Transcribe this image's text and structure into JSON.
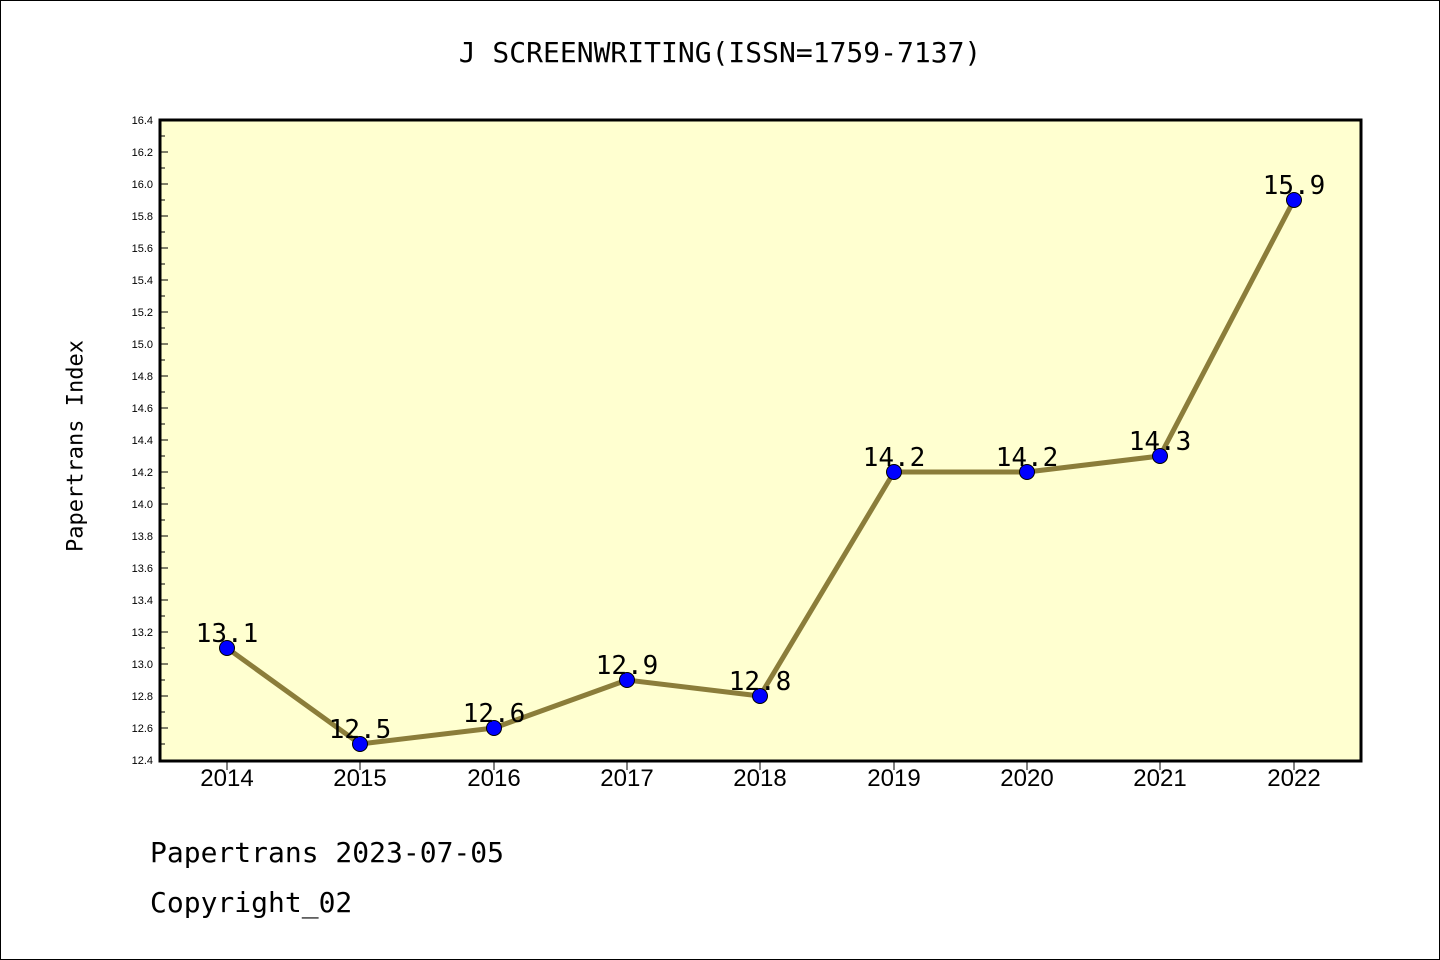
{
  "chart_data": {
    "type": "line",
    "title": "J SCREENWRITING(ISSN=1759-7137)",
    "xlabel": "",
    "ylabel": "Papertrans Index",
    "x": [
      "2014",
      "2015",
      "2016",
      "2017",
      "2018",
      "2019",
      "2020",
      "2021",
      "2022"
    ],
    "series": [
      {
        "values": [
          13.1,
          12.5,
          12.6,
          12.9,
          12.8,
          14.2,
          14.2,
          14.3,
          15.9
        ],
        "data_labels": [
          "13.1",
          "12.5",
          "12.6",
          "12.9",
          "12.8",
          "14.2",
          "14.2",
          "14.3",
          "15.9"
        ]
      }
    ],
    "ylim": [
      12.4,
      16.4
    ],
    "yticks": [
      "12.4",
      "12.6",
      "12.8",
      "13.0",
      "13.2",
      "13.4",
      "13.6",
      "13.8",
      "14.0",
      "14.2",
      "14.4",
      "14.6",
      "14.8",
      "15.0",
      "15.2",
      "15.4",
      "15.6",
      "15.8",
      "16.0",
      "16.2",
      "16.4"
    ],
    "grid": false,
    "plot_background": "#ffffd0",
    "line_color": "#8b7d3a",
    "marker_color": "#0000ff"
  },
  "footer": {
    "line1": "Papertrans 2023-07-05",
    "line2": "Copyright_02"
  }
}
